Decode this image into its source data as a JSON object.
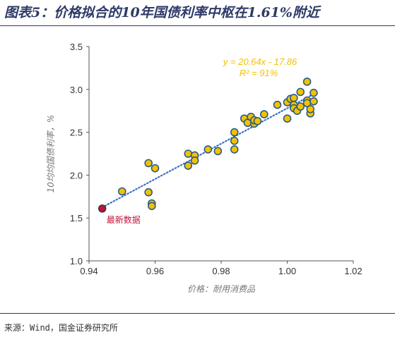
{
  "header": {
    "title": "图表5：价格拟合的10年国债利率中枢在1.61%附近"
  },
  "footer": {
    "source": "来源：Wind，国金证券研究所"
  },
  "colors": {
    "title": "#2e3a67",
    "point_fill": "#f2c200",
    "point_stroke": "#2b5c8a",
    "latest_fill": "#c0143c",
    "trendline": "#3a6fc4",
    "equation": "#f2c200",
    "latest_label": "#c0143c"
  },
  "chart_data": {
    "type": "scatter",
    "xlabel": "价格：耐用消费品",
    "ylabel": "10均均国债利率，%",
    "xlim": [
      0.94,
      1.02
    ],
    "ylim": [
      1.0,
      3.5
    ],
    "xticks": [
      "0.94",
      "0.96",
      "0.98",
      "1.00",
      "1.02"
    ],
    "yticks": [
      "1.0",
      "1.5",
      "2.0",
      "2.5",
      "3.0",
      "3.5"
    ],
    "trendline": {
      "slope": 20.64,
      "intercept": -17.86,
      "equation": "y = 20.64x - 17.86",
      "r2": "R² = 91%"
    },
    "points": [
      {
        "x": 0.95,
        "y": 1.81
      },
      {
        "x": 0.958,
        "y": 1.8
      },
      {
        "x": 0.958,
        "y": 2.14
      },
      {
        "x": 0.959,
        "y": 1.67
      },
      {
        "x": 0.959,
        "y": 1.64
      },
      {
        "x": 0.96,
        "y": 2.08
      },
      {
        "x": 0.97,
        "y": 2.25
      },
      {
        "x": 0.97,
        "y": 2.11
      },
      {
        "x": 0.972,
        "y": 2.23
      },
      {
        "x": 0.972,
        "y": 2.17
      },
      {
        "x": 0.976,
        "y": 2.3
      },
      {
        "x": 0.979,
        "y": 2.28
      },
      {
        "x": 0.984,
        "y": 2.5
      },
      {
        "x": 0.984,
        "y": 2.4
      },
      {
        "x": 0.984,
        "y": 2.3
      },
      {
        "x": 0.987,
        "y": 2.66
      },
      {
        "x": 0.988,
        "y": 2.61
      },
      {
        "x": 0.989,
        "y": 2.68
      },
      {
        "x": 0.99,
        "y": 2.6
      },
      {
        "x": 0.99,
        "y": 2.64
      },
      {
        "x": 0.991,
        "y": 2.63
      },
      {
        "x": 0.993,
        "y": 2.71
      },
      {
        "x": 0.997,
        "y": 2.82
      },
      {
        "x": 1.0,
        "y": 2.85
      },
      {
        "x": 1.0,
        "y": 2.66
      },
      {
        "x": 1.001,
        "y": 2.89
      },
      {
        "x": 1.002,
        "y": 2.82
      },
      {
        "x": 1.002,
        "y": 2.9
      },
      {
        "x": 1.002,
        "y": 2.78
      },
      {
        "x": 1.003,
        "y": 2.75
      },
      {
        "x": 1.004,
        "y": 2.97
      },
      {
        "x": 1.004,
        "y": 2.8
      },
      {
        "x": 1.006,
        "y": 3.09
      },
      {
        "x": 1.006,
        "y": 2.87
      },
      {
        "x": 1.006,
        "y": 2.84
      },
      {
        "x": 1.007,
        "y": 2.72
      },
      {
        "x": 1.007,
        "y": 2.77
      },
      {
        "x": 1.008,
        "y": 2.96
      },
      {
        "x": 1.008,
        "y": 2.86
      }
    ],
    "latest": {
      "x": 0.944,
      "y": 1.61,
      "label": "最新数据"
    }
  }
}
